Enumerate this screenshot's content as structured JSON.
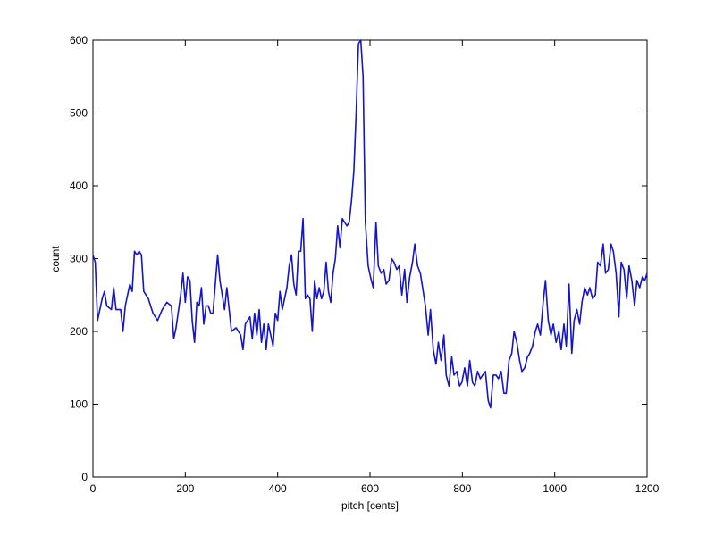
{
  "chart_data": {
    "type": "line",
    "xlabel": "pitch [cents]",
    "ylabel": "count",
    "x": [
      0,
      5,
      10,
      20,
      25,
      30,
      40,
      45,
      50,
      60,
      65,
      70,
      80,
      85,
      90,
      95,
      100,
      105,
      110,
      120,
      130,
      140,
      150,
      160,
      170,
      175,
      180,
      190,
      195,
      200,
      205,
      210,
      215,
      220,
      225,
      230,
      235,
      240,
      245,
      250,
      255,
      260,
      270,
      275,
      280,
      285,
      290,
      295,
      300,
      310,
      320,
      325,
      330,
      340,
      345,
      350,
      355,
      360,
      365,
      370,
      375,
      380,
      390,
      395,
      400,
      405,
      410,
      420,
      425,
      430,
      435,
      440,
      445,
      450,
      455,
      460,
      465,
      470,
      475,
      480,
      485,
      490,
      495,
      500,
      505,
      510,
      515,
      520,
      525,
      530,
      535,
      540,
      545,
      550,
      555,
      560,
      565,
      570,
      575,
      580,
      585,
      590,
      596,
      601,
      607,
      613,
      618,
      624,
      630,
      635,
      641,
      647,
      652,
      658,
      663,
      669,
      675,
      680,
      686,
      692,
      697,
      703,
      709,
      714,
      720,
      726,
      731,
      737,
      743,
      748,
      754,
      760,
      765,
      771,
      777,
      782,
      788,
      794,
      799,
      805,
      811,
      816,
      822,
      827,
      833,
      839,
      844,
      850,
      856,
      861,
      867,
      873,
      878,
      884,
      890,
      895,
      901,
      907,
      912,
      918,
      924,
      929,
      935,
      941,
      946,
      952,
      958,
      963,
      969,
      975,
      980,
      986,
      992,
      997,
      1003,
      1009,
      1014,
      1020,
      1025,
      1031,
      1037,
      1042,
      1048,
      1054,
      1059,
      1065,
      1071,
      1076,
      1082,
      1088,
      1093,
      1099,
      1105,
      1110,
      1116,
      1122,
      1127,
      1133,
      1139,
      1144,
      1150,
      1156,
      1161,
      1167,
      1173,
      1178,
      1184,
      1190,
      1195,
      1200
    ],
    "series": [
      {
        "color": "#1414c8",
        "values": [
          305,
          295,
          215,
          245,
          255,
          235,
          230,
          260,
          230,
          230,
          200,
          235,
          265,
          255,
          310,
          305,
          310,
          305,
          255,
          245,
          225,
          215,
          230,
          240,
          235,
          190,
          205,
          250,
          280,
          240,
          275,
          270,
          215,
          185,
          240,
          235,
          260,
          210,
          235,
          235,
          225,
          225,
          305,
          270,
          250,
          230,
          260,
          230,
          200,
          205,
          195,
          175,
          210,
          220,
          190,
          225,
          195,
          230,
          185,
          210,
          175,
          210,
          180,
          225,
          215,
          255,
          230,
          260,
          290,
          305,
          265,
          250,
          310,
          310,
          355,
          245,
          250,
          245,
          200,
          270,
          245,
          260,
          245,
          255,
          295,
          255,
          240,
          280,
          300,
          345,
          315,
          355,
          350,
          345,
          350,
          380,
          420,
          500,
          595,
          600,
          550,
          350,
          290,
          275,
          260,
          350,
          290,
          280,
          285,
          265,
          270,
          300,
          295,
          285,
          290,
          250,
          285,
          240,
          275,
          295,
          320,
          290,
          280,
          260,
          235,
          195,
          230,
          175,
          155,
          185,
          160,
          195,
          140,
          125,
          165,
          140,
          145,
          125,
          130,
          150,
          125,
          160,
          130,
          125,
          145,
          135,
          140,
          145,
          105,
          95,
          140,
          140,
          135,
          145,
          115,
          115,
          160,
          170,
          200,
          185,
          160,
          145,
          150,
          165,
          170,
          180,
          200,
          210,
          195,
          240,
          270,
          215,
          195,
          210,
          185,
          200,
          175,
          210,
          180,
          265,
          170,
          215,
          230,
          210,
          240,
          260,
          250,
          260,
          245,
          250,
          295,
          290,
          320,
          280,
          285,
          320,
          310,
          280,
          220,
          295,
          285,
          245,
          290,
          270,
          235,
          270,
          260,
          275,
          270,
          280
        ]
      }
    ],
    "xlim": [
      0,
      1200
    ],
    "ylim": [
      0,
      600
    ],
    "xticks": [
      0,
      200,
      400,
      600,
      800,
      1000,
      1200
    ],
    "yticks": [
      0,
      100,
      200,
      300,
      400,
      500,
      600
    ]
  }
}
